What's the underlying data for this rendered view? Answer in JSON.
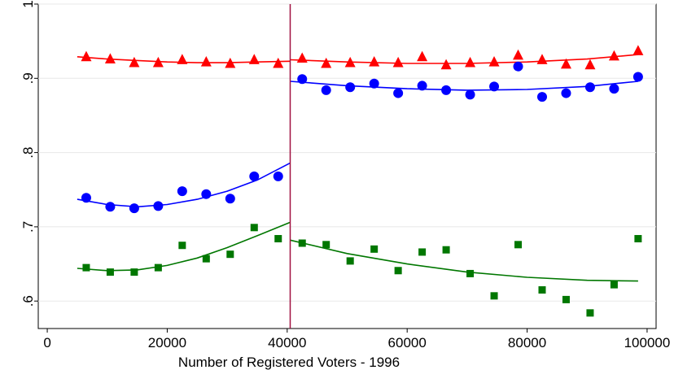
{
  "chart_data": {
    "type": "scatter",
    "title": "",
    "xlabel": "Number of Registered Voters - 1996",
    "ylabel": "",
    "xlim": [
      -1500,
      101500
    ],
    "ylim": [
      0.563,
      1.0
    ],
    "xticks": [
      0,
      20000,
      40000,
      60000,
      80000,
      100000
    ],
    "xtick_labels": [
      "0",
      "20000",
      "40000",
      "60000",
      "80000",
      "100000"
    ],
    "yticks": [
      0.6,
      0.7,
      0.8,
      0.9,
      1.0
    ],
    "ytick_labels": [
      ".6",
      ".7",
      ".8",
      ".9",
      "1"
    ],
    "grid": "horizontal",
    "legend": "none",
    "cutoff": 40500,
    "cutoff_color": "#a01040",
    "series": [
      {
        "marker": "triangle",
        "color": "#ff0000",
        "x": [
          6500,
          10500,
          14500,
          18500,
          22500,
          26500,
          30500,
          34500,
          38500,
          42500,
          46500,
          50500,
          54500,
          58500,
          62500,
          66500,
          70500,
          74500,
          78500,
          82500,
          86500,
          90500,
          94500,
          98500
        ],
        "y": [
          0.929,
          0.926,
          0.921,
          0.921,
          0.925,
          0.922,
          0.92,
          0.925,
          0.92,
          0.927,
          0.92,
          0.921,
          0.922,
          0.921,
          0.929,
          0.918,
          0.921,
          0.922,
          0.931,
          0.925,
          0.919,
          0.918,
          0.93,
          0.937
        ],
        "fit": [
          {
            "x": [
              5000,
              10000,
              15000,
              20000,
              25000,
              30000,
              35000,
              40500
            ],
            "y": [
              0.929,
              0.926,
              0.924,
              0.922,
              0.921,
              0.921,
              0.922,
              0.923
            ]
          },
          {
            "x": [
              40500,
              50000,
              60000,
              70000,
              80000,
              90000,
              98500
            ],
            "y": [
              0.925,
              0.922,
              0.92,
              0.92,
              0.922,
              0.926,
              0.932
            ]
          }
        ]
      },
      {
        "marker": "circle",
        "color": "#0000ff",
        "x": [
          6500,
          10500,
          14500,
          18500,
          22500,
          26500,
          30500,
          34500,
          38500,
          42500,
          46500,
          50500,
          54500,
          58500,
          62500,
          66500,
          70500,
          74500,
          78500,
          82500,
          86500,
          90500,
          94500,
          98500
        ],
        "y": [
          0.739,
          0.727,
          0.725,
          0.728,
          0.748,
          0.744,
          0.738,
          0.768,
          0.768,
          0.899,
          0.884,
          0.888,
          0.893,
          0.88,
          0.89,
          0.884,
          0.878,
          0.889,
          0.916,
          0.875,
          0.88,
          0.888,
          0.886,
          0.902
        ],
        "fit": [
          {
            "x": [
              5000,
              10000,
              15000,
              20000,
              25000,
              30000,
              35000,
              40500
            ],
            "y": [
              0.737,
              0.73,
              0.727,
              0.73,
              0.737,
              0.748,
              0.763,
              0.786
            ]
          },
          {
            "x": [
              40500,
              50000,
              60000,
              70000,
              80000,
              90000,
              98500
            ],
            "y": [
              0.896,
              0.89,
              0.886,
              0.884,
              0.885,
              0.889,
              0.896
            ]
          }
        ]
      },
      {
        "marker": "square",
        "color": "#007700",
        "x": [
          6500,
          10500,
          14500,
          18500,
          22500,
          26500,
          30500,
          34500,
          38500,
          42500,
          46500,
          50500,
          54500,
          58500,
          62500,
          66500,
          70500,
          74500,
          78500,
          82500,
          86500,
          90500,
          94500,
          98500
        ],
        "y": [
          0.645,
          0.639,
          0.639,
          0.645,
          0.675,
          0.657,
          0.663,
          0.699,
          0.684,
          0.678,
          0.676,
          0.654,
          0.67,
          0.641,
          0.666,
          0.669,
          0.637,
          0.607,
          0.676,
          0.615,
          0.602,
          0.584,
          0.622,
          0.684
        ],
        "fit": [
          {
            "x": [
              5000,
              10000,
              15000,
              20000,
              25000,
              30000,
              35000,
              40500
            ],
            "y": [
              0.644,
              0.641,
              0.642,
              0.648,
              0.658,
              0.672,
              0.688,
              0.706
            ]
          },
          {
            "x": [
              40500,
              50000,
              60000,
              70000,
              80000,
              90000,
              98500
            ],
            "y": [
              0.682,
              0.664,
              0.65,
              0.639,
              0.632,
              0.628,
              0.627
            ]
          }
        ]
      }
    ]
  }
}
